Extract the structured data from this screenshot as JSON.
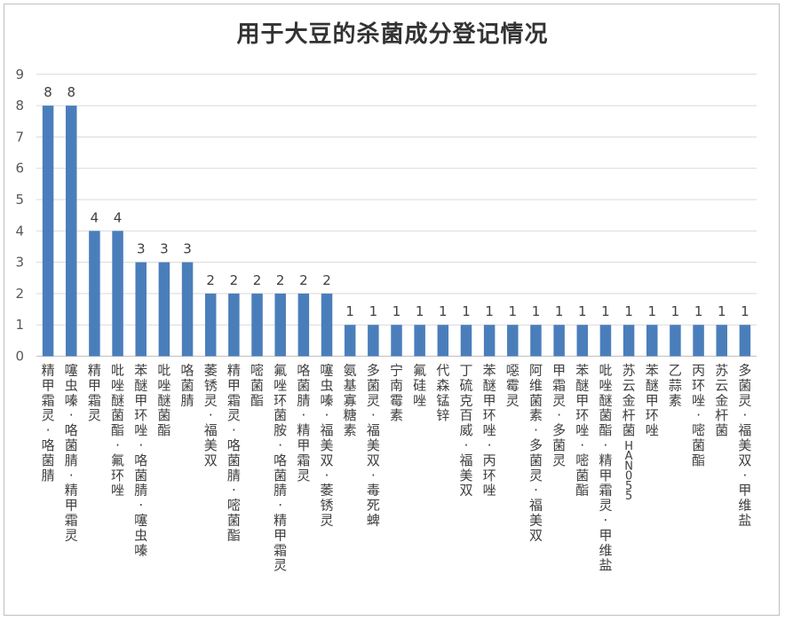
{
  "chart_data": {
    "type": "bar",
    "title": "用于大豆的杀菌成分登记情况",
    "xlabel": "",
    "ylabel": "",
    "ylim": [
      0,
      9
    ],
    "yticks": [
      0,
      1,
      2,
      3,
      4,
      5,
      6,
      7,
      8,
      9
    ],
    "grid": true,
    "legend": "none",
    "bar_color": "#4a7ebb",
    "categories": [
      "精甲霜灵·咯菌腈",
      "噻虫嗪·咯菌腈·精甲霜灵",
      "精甲霜灵",
      "吡唑醚菌酯·氟环唑",
      "苯醚甲环唑·咯菌腈·噻虫嗪",
      "吡唑醚菌酯",
      "咯菌腈",
      "萎锈灵·福美双",
      "精甲霜灵·咯菌腈·嘧菌酯",
      "嘧菌酯",
      "氟唑环菌胺·咯菌腈·精甲霜灵",
      "咯菌腈·精甲霜灵",
      "噻虫嗪·福美双·萎锈灵",
      "氨基寡糖素",
      "多菌灵·福美双·毒死蜱",
      "宁南霉素",
      "氟硅唑",
      "代森锰锌",
      "丁硫克百威·福美双",
      "苯醚甲环唑·丙环唑",
      "噁霉灵",
      "阿维菌素·多菌灵·福美双",
      "甲霜灵·多菌灵",
      "苯醚甲环唑·嘧菌酯",
      "吡唑醚菌酯·精甲霜灵·甲维盐",
      "苏云金杆菌HAN055",
      "苯醚甲环唑",
      "乙蒜素",
      "丙环唑·嘧菌酯",
      "苏云金杆菌",
      "多菌灵·福美双·甲维盐"
    ],
    "values": [
      8,
      8,
      4,
      4,
      3,
      3,
      3,
      2,
      2,
      2,
      2,
      2,
      2,
      1,
      1,
      1,
      1,
      1,
      1,
      1,
      1,
      1,
      1,
      1,
      1,
      1,
      1,
      1,
      1,
      1,
      1
    ]
  }
}
